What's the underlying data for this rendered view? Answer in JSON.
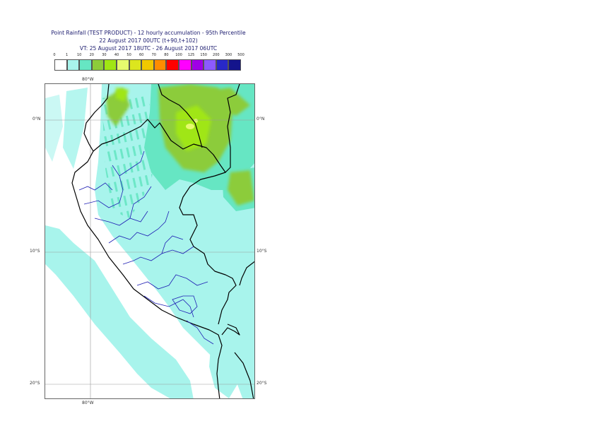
{
  "title": {
    "line1": "Point Rainfall (TEST PRODUCT) - 12 hourly accumulation - 95th Percentile",
    "line2": "22 August 2017 00UTC (t+90,t+102)",
    "line3": "VT: 25 August 2017 18UTC - 26 August 2017 06UTC"
  },
  "legend": {
    "ticks": [
      "0",
      "1",
      "10",
      "20",
      "30",
      "40",
      "50",
      "60",
      "70",
      "80",
      "100",
      "125",
      "150",
      "200",
      "300",
      "500"
    ],
    "colors": [
      "#ffffff",
      "#a8f4ec",
      "#66e6c3",
      "#8ccc3a",
      "#a0e614",
      "#e6fa6e",
      "#dce61e",
      "#f0c800",
      "#ff8c00",
      "#ff0000",
      "#ff00ff",
      "#a000e6",
      "#8c5aff",
      "#2828c8",
      "#14148c"
    ]
  },
  "axes": {
    "lon_top": "80°W",
    "lon_bottom": "80°W",
    "lat_0": "0°N",
    "lat_10": "10°S",
    "lat_20": "20°S"
  }
}
